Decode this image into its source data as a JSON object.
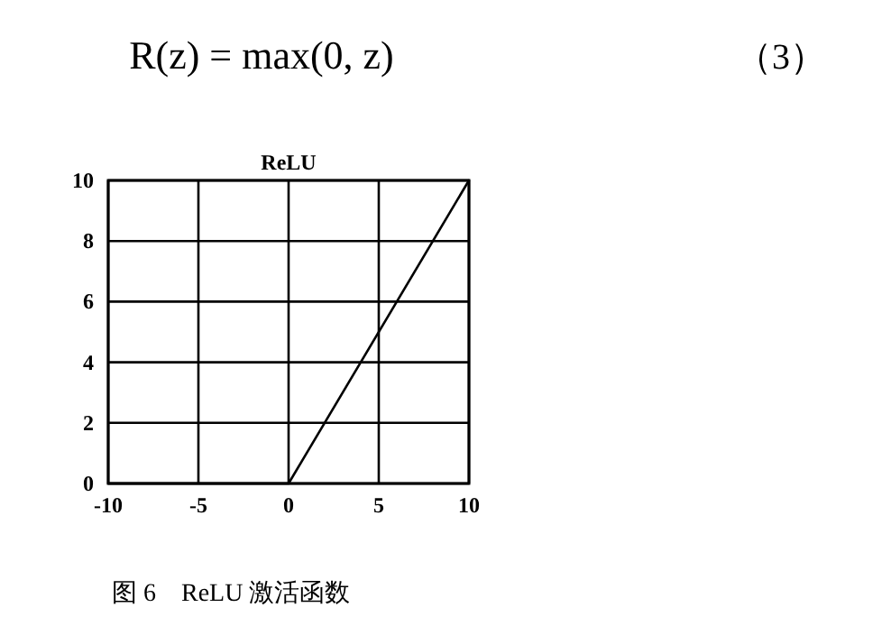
{
  "chart_data": {
    "type": "line",
    "title": "ReLU",
    "x": [
      -10,
      0,
      10
    ],
    "series": [
      {
        "color": "#000000",
        "values": [
          0,
          0,
          10
        ]
      }
    ],
    "xlim": [
      -10,
      10
    ],
    "xticks": [
      -10,
      -5,
      0,
      5,
      10
    ],
    "ylim": [
      0,
      10
    ],
    "yticks": [
      0,
      2,
      4,
      6,
      8,
      10
    ],
    "grid": true,
    "marker": "none",
    "line_style": "solid",
    "annotations": [
      "R(z) = max(0, z)",
      "（3）",
      "图 6　ReLU 激活函数"
    ]
  }
}
